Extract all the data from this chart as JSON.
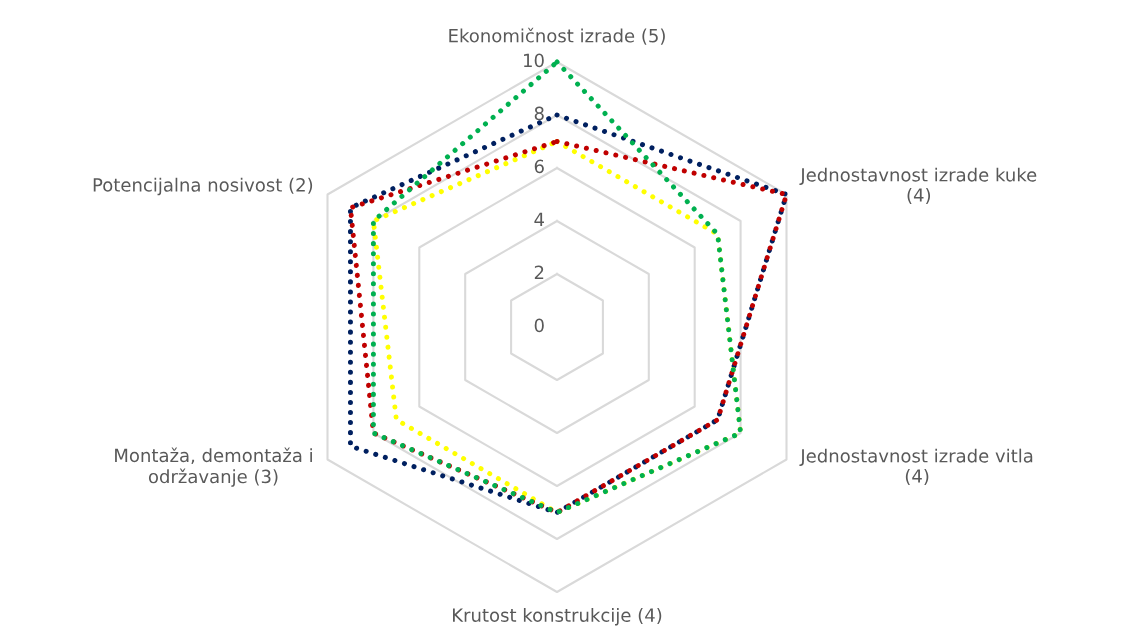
{
  "chart_data": {
    "type": "radar",
    "categories": [
      "Ekonomičnost izrade (5)",
      "Jednostavnost izrade kuke\n(4)",
      "Jednostavnost izrade vitla\n(4)",
      "Krutost konstrukcije (4)",
      "Montaža, demontaža i\nodržavanje (3)",
      "Potencijalna nosivost (2)"
    ],
    "series": [
      {
        "color": "#002060",
        "values": [
          8,
          10,
          7,
          7,
          9,
          9
        ]
      },
      {
        "color": "#ffff00",
        "values": [
          7,
          7,
          8,
          7,
          7,
          8
        ]
      },
      {
        "color": "#c00000",
        "values": [
          7,
          10,
          7,
          7,
          8,
          9
        ]
      },
      {
        "color": "#00b050",
        "values": [
          10,
          7,
          8,
          7,
          8,
          8
        ]
      }
    ],
    "ylim": [
      0,
      10
    ],
    "yticks": [
      0,
      2,
      4,
      6,
      8,
      10
    ],
    "grid": true,
    "line_style": "dotted",
    "legend": false
  }
}
